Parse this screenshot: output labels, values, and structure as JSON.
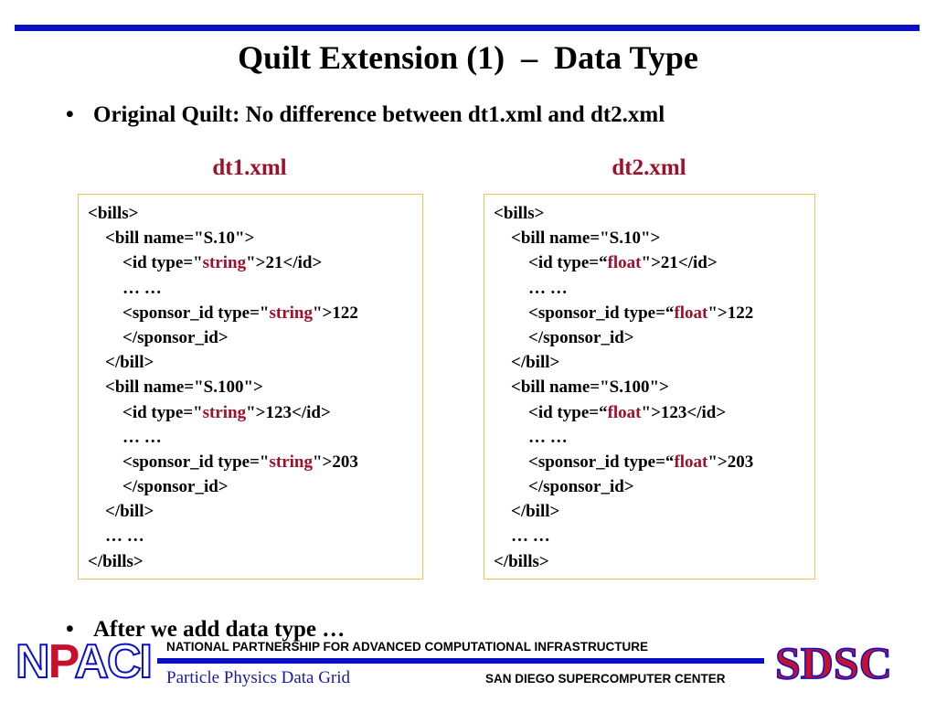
{
  "title": "Quilt Extension (1)  –  Data Type",
  "bullets": [
    {
      "symbol": "•",
      "text": "Original Quilt: No difference between dt1.xml and dt2.xml"
    },
    {
      "symbol": "•",
      "text": "After we add data type …"
    }
  ],
  "files": [
    {
      "name": "dt1.xml",
      "lines": [
        {
          "pre": "<bills>",
          "type": "",
          "post": ""
        },
        {
          "pre": "    <bill name=\"S.10\">",
          "type": "",
          "post": ""
        },
        {
          "pre": "        <id type=\"",
          "type": "string",
          "post": "\">21</id>"
        },
        {
          "pre": "        … …",
          "type": "",
          "post": ""
        },
        {
          "pre": "        <sponsor_id type=\"",
          "type": "string",
          "post": "\">122"
        },
        {
          "pre": "        </sponsor_id>",
          "type": "",
          "post": ""
        },
        {
          "pre": "    </bill>",
          "type": "",
          "post": ""
        },
        {
          "pre": "    <bill name=\"S.100\">",
          "type": "",
          "post": ""
        },
        {
          "pre": "        <id type=\"",
          "type": "string",
          "post": "\">123</id>"
        },
        {
          "pre": "        … …",
          "type": "",
          "post": ""
        },
        {
          "pre": "        <sponsor_id type=\"",
          "type": "string",
          "post": "\">203"
        },
        {
          "pre": "        </sponsor_id>",
          "type": "",
          "post": ""
        },
        {
          "pre": "    </bill>",
          "type": "",
          "post": ""
        },
        {
          "pre": "    … …",
          "type": "",
          "post": ""
        },
        {
          "pre": "</bills>",
          "type": "",
          "post": ""
        }
      ]
    },
    {
      "name": "dt2.xml",
      "lines": [
        {
          "pre": "<bills>",
          "type": "",
          "post": ""
        },
        {
          "pre": "    <bill name=\"S.10\">",
          "type": "",
          "post": ""
        },
        {
          "pre": "        <id type=“",
          "type": "float",
          "post": "\">21</id>"
        },
        {
          "pre": "        … …",
          "type": "",
          "post": ""
        },
        {
          "pre": "        <sponsor_id type=“",
          "type": "float",
          "post": "\">122"
        },
        {
          "pre": "        </sponsor_id>",
          "type": "",
          "post": ""
        },
        {
          "pre": "    </bill>",
          "type": "",
          "post": ""
        },
        {
          "pre": "    <bill name=\"S.100\">",
          "type": "",
          "post": ""
        },
        {
          "pre": "        <id type=“",
          "type": "float",
          "post": "\">123</id>"
        },
        {
          "pre": "        … …",
          "type": "",
          "post": ""
        },
        {
          "pre": "        <sponsor_id type=“",
          "type": "float",
          "post": "\">203"
        },
        {
          "pre": "        </sponsor_id>",
          "type": "",
          "post": ""
        },
        {
          "pre": "    </bill>",
          "type": "",
          "post": ""
        },
        {
          "pre": "    … …",
          "type": "",
          "post": ""
        },
        {
          "pre": "</bills>",
          "type": "",
          "post": ""
        }
      ]
    }
  ],
  "footer": {
    "npaci_logo": {
      "part1": "N",
      "part2": "P",
      "part3": "ACI"
    },
    "npaci_text": "NATIONAL PARTNERSHIP FOR ADVANCED COMPUTATIONAL INFRASTRUCTURE",
    "ppdg_text": "Particle Physics Data Grid",
    "sdsc_text": "SAN DIEGO SUPERCOMPUTER CENTER",
    "sdsc_logo": "SDSC"
  },
  "colors": {
    "accent_blue": "#0a10c8",
    "type_red": "#a0102a",
    "box_border": "#f0c060"
  }
}
